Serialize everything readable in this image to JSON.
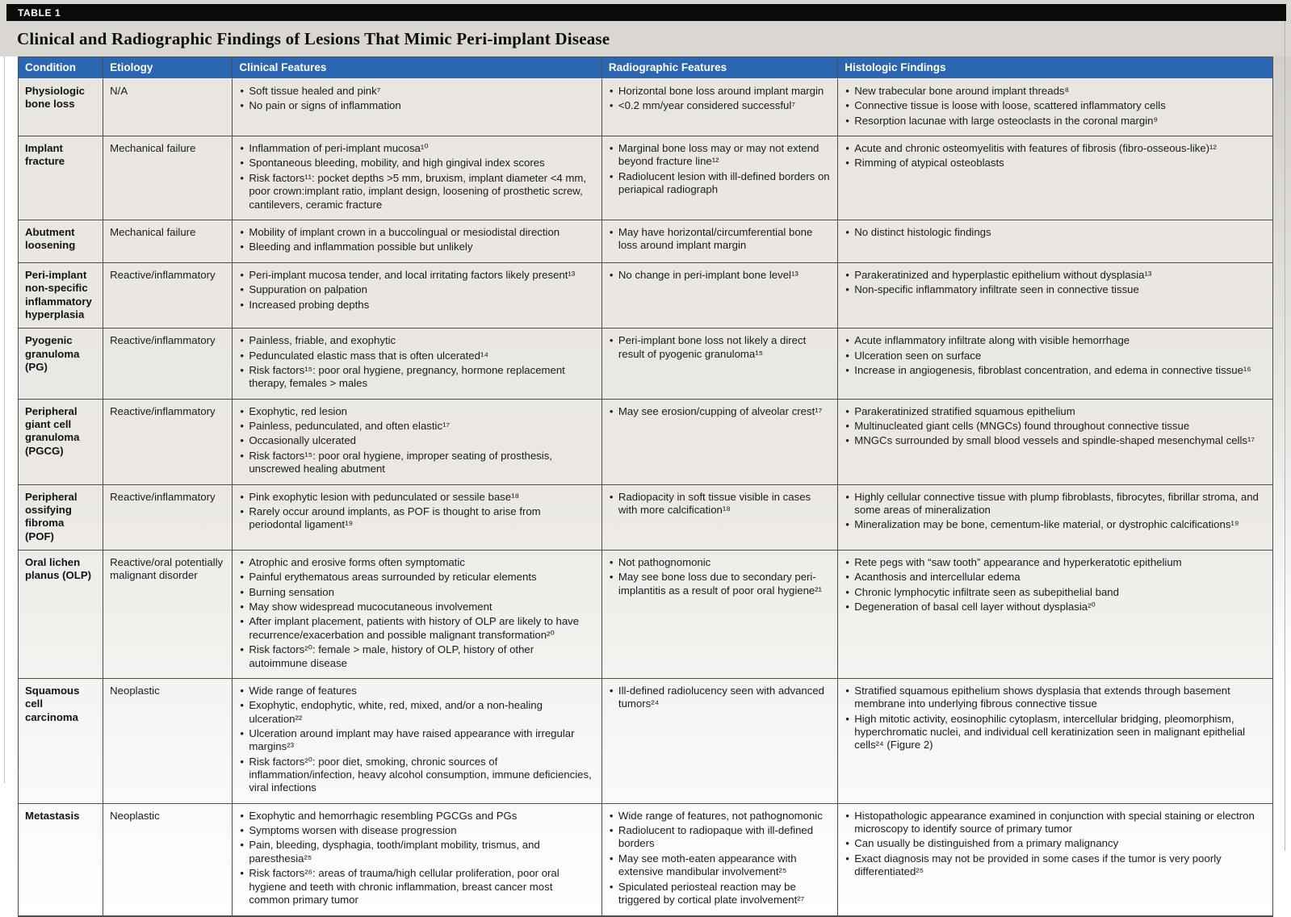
{
  "bar_label": "TABLE 1",
  "title": "Clinical and Radiographic Findings of Lesions That Mimic Peri-implant Disease",
  "colors": {
    "header_bg": "#2a66b2",
    "header_text": "#ffffff",
    "bar_bg": "#0a0a0a",
    "body_bg_top": "#e9e6e2",
    "border": "#4f4c49"
  },
  "columns": [
    "Condition",
    "Etiology",
    "Clinical Features",
    "Radiographic Features",
    "Histologic Findings"
  ],
  "rows": [
    {
      "min_height": 53,
      "condition": "Physiologic bone loss",
      "etiology": "N/A",
      "clinical": [
        "Soft tissue healed and pink⁷",
        "No pain or signs of inflammation"
      ],
      "radiographic": [
        "Horizontal bone loss around implant margin",
        "<0.2 mm/year considered successful⁷"
      ],
      "histologic": [
        "New trabecular bone around implant threads⁸",
        "Connective tissue is loose with loose, scattered inflammatory cells",
        "Resorption lacunae with large osteoclasts in the coronal margin⁹"
      ]
    },
    {
      "min_height": 84,
      "condition": "Implant fracture",
      "etiology": "Mechanical failure",
      "clinical": [
        "Inflammation of peri-implant mucosa¹⁰",
        "Spontaneous bleeding, mobility, and high gingival index scores",
        "Risk factors¹¹: pocket depths >5 mm, bruxism, implant diameter <4 mm, poor crown:implant ratio, implant design, loosening of prosthetic screw, cantilevers, ceramic fracture"
      ],
      "radiographic": [
        "Marginal bone loss may or may not extend beyond fracture line¹²",
        "Radiolucent lesion with ill-defined borders on periapical radiograph"
      ],
      "histologic": [
        "Acute and chronic osteomyelitis with features of fibrosis (fibro-osseous-like)¹²",
        "Rimming of atypical osteoblasts"
      ]
    },
    {
      "min_height": 53,
      "condition": "Abutment loosening",
      "etiology": "Mechanical failure",
      "clinical": [
        "Mobility of implant crown in a buccolingual or mesiodistal direction",
        "Bleeding and inflammation possible but unlikely"
      ],
      "radiographic": [
        "May have horizontal/circumferential bone loss around implant margin"
      ],
      "histologic": [
        "No distinct histologic findings"
      ]
    },
    {
      "min_height": 68,
      "condition": "Peri-implant non-specific inflammatory hyperplasia",
      "etiology": "Reactive/inflammatory",
      "clinical": [
        "Peri-implant mucosa tender, and local irritating factors likely present¹³",
        "Suppuration on palpation",
        "Increased probing depths"
      ],
      "radiographic": [
        "No change in peri-implant bone level¹³"
      ],
      "histologic": [
        "Parakeratinized and hyperplastic epithelium without dysplasia¹³",
        "Non-specific inflammatory infiltrate seen in connective tissue"
      ]
    },
    {
      "min_height": 72,
      "condition": "Pyogenic granuloma (PG)",
      "etiology": "Reactive/inflammatory",
      "clinical": [
        "Painless, friable, and exophytic",
        "Pedunculated elastic mass that is often ulcerated¹⁴",
        "Risk factors¹⁵: poor oral hygiene, pregnancy, hormone replacement therapy, females > males"
      ],
      "radiographic": [
        "Peri-implant bone loss not likely a direct result of pyogenic granuloma¹⁵"
      ],
      "histologic": [
        "Acute inflammatory infiltrate along with visible hemorrhage",
        "Ulceration seen on surface",
        "Increase in angiogenesis, fibroblast concentration, and edema in connective tissue¹⁶"
      ]
    },
    {
      "min_height": 84,
      "condition": "Peripheral giant cell granuloma (PGCG)",
      "etiology": "Reactive/inflammatory",
      "clinical": [
        "Exophytic, red lesion",
        "Painless, pedunculated, and often elastic¹⁷",
        "Occasionally ulcerated",
        "Risk factors¹⁵: poor oral hygiene, improper seating of prosthesis, unscrewed healing abutment"
      ],
      "radiographic": [
        "May see erosion/cupping of alveolar crest¹⁷"
      ],
      "histologic": [
        "Parakeratinized stratified squamous epithelium",
        "Multinucleated giant cells (MNGCs) found throughout connective tissue",
        "MNGCs surrounded by small blood vessels and spindle-shaped mesenchymal cells¹⁷"
      ]
    },
    {
      "min_height": 53,
      "condition": "Peripheral ossifying fibroma (POF)",
      "etiology": "Reactive/inflammatory",
      "clinical": [
        "Pink exophytic lesion with pedunculated or sessile base¹⁸",
        "Rarely occur around implants, as POF is thought to arise from periodontal ligament¹⁹"
      ],
      "radiographic": [
        "Radiopacity in soft tissue visible in cases with more calcification¹⁸"
      ],
      "histologic": [
        "Highly cellular connective tissue with plump fibroblasts, fibrocytes, fibrillar stroma, and some areas of mineralization",
        "Mineralization may be bone, cementum-like material, or dystrophic calcifications¹⁹"
      ]
    },
    {
      "min_height": 130,
      "condition": "Oral lichen planus (OLP)",
      "etiology": "Reactive/oral potentially malignant disorder",
      "clinical": [
        "Atrophic and erosive forms often symptomatic",
        "Painful erythematous areas surrounded by reticular elements",
        "Burning sensation",
        "May show widespread mucocutaneous involvement",
        "After implant placement, patients with history of OLP are likely to have recurrence/exacerbation and possible malignant transformation²⁰",
        "Risk factors²⁰: female > male, history of OLP, history of other autoimmune disease"
      ],
      "radiographic": [
        "Not pathognomonic",
        "May see bone loss due to secondary peri-implantitis as a result of poor oral hygiene²¹"
      ],
      "histologic": [
        "Rete pegs with “saw tooth” appearance and hyperkeratotic epithelium",
        "Acanthosis and intercellular edema",
        "Chronic lymphocytic infiltrate seen as subepithelial band",
        "Degeneration of basal cell layer without dysplasia²⁰"
      ]
    },
    {
      "min_height": 131,
      "condition": "Squamous cell carcinoma",
      "etiology": "Neoplastic",
      "clinical": [
        "Wide range of features",
        "Exophytic, endophytic, white, red, mixed, and/or a non-healing ulceration²²",
        "Ulceration around implant may have raised appearance with irregular margins²³",
        "Risk factors²⁰: poor diet, smoking, chronic sources of inflammation/infection, heavy alcohol consumption, immune deficiencies, viral infections"
      ],
      "radiographic": [
        "Ill-defined radiolucency seen with advanced tumors²⁴"
      ],
      "histologic": [
        "Stratified squamous epithelium shows dysplasia that extends through basement membrane into underlying fibrous connective tissue",
        "High mitotic activity, eosinophilic cytoplasm, intercellular bridging, pleomorphism, hyperchromatic nuclei, and individual cell keratinization seen in malignant epithelial cells²⁴ (Figure 2)"
      ]
    },
    {
      "min_height": 138,
      "condition": "Metastasis",
      "etiology": "Neoplastic",
      "clinical": [
        "Exophytic and hemorrhagic resembling PGCGs and PGs",
        "Symptoms worsen with disease progression",
        "Pain, bleeding, dysphagia, tooth/implant mobility, trismus, and paresthesia²⁵",
        "Risk factors²⁶: areas of trauma/high cellular proliferation, poor oral hygiene and teeth with chronic inflammation, breast cancer most common primary tumor"
      ],
      "radiographic": [
        "Wide range of features, not pathognomonic",
        "Radiolucent to radiopaque with ill-defined borders",
        "May see moth-eaten appearance with extensive mandibular involvement²⁵",
        "Spiculated periosteal reaction may be triggered by cortical plate involvement²⁷"
      ],
      "histologic": [
        "Histopathologic appearance examined in conjunction with special staining or electron microscopy to identify source of primary tumor",
        "Can usually be distinguished from a primary malignancy",
        "Exact diagnosis may not be provided in some cases if the tumor is very poorly differentiated²⁵"
      ]
    }
  ]
}
